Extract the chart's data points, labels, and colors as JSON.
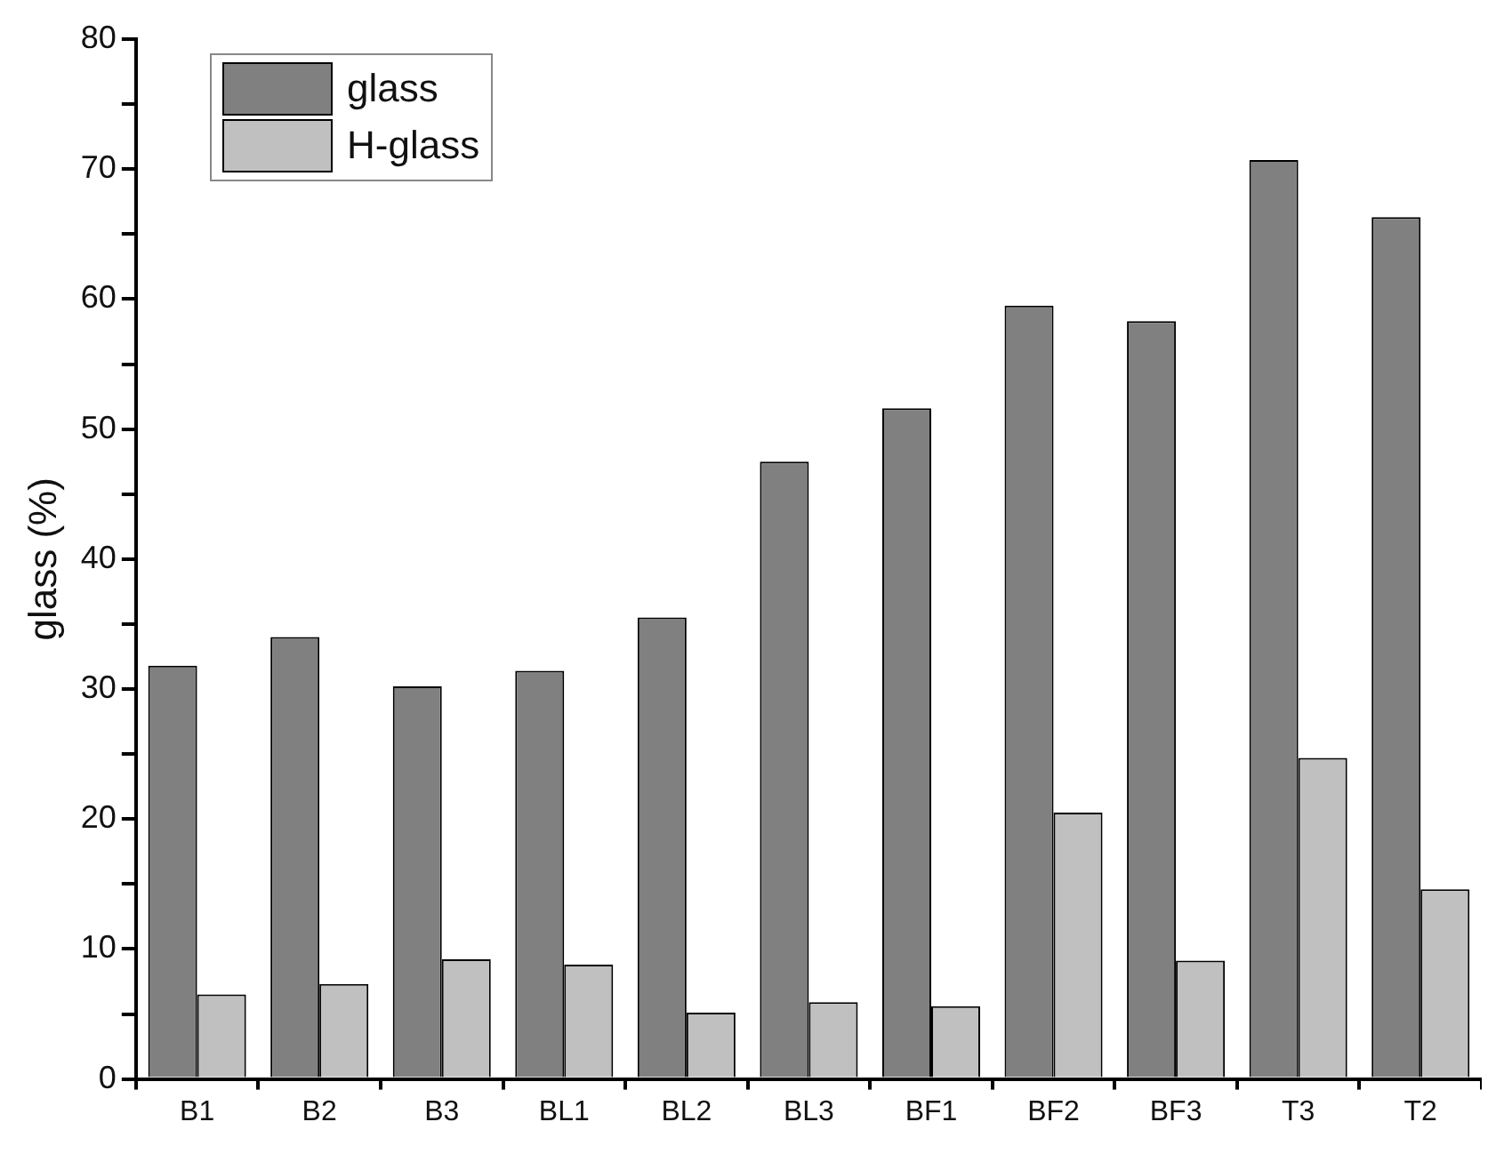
{
  "chart_data": {
    "type": "bar",
    "ylabel": "glass (%)",
    "categories": [
      "B1",
      "B2",
      "B3",
      "BL1",
      "BL2",
      "BL3",
      "BF1",
      "BF2",
      "BF3",
      "T3",
      "T2"
    ],
    "series": [
      {
        "name": "glass",
        "color": "#808080",
        "values": [
          31.8,
          34,
          30.2,
          31.4,
          35.5,
          47.5,
          51.6,
          59.5,
          58.3,
          70.7,
          66.3
        ]
      },
      {
        "name": "H-glass",
        "color": "#c0c0c0",
        "values": [
          6.5,
          7.3,
          9.2,
          8.8,
          5.1,
          5.9,
          5.6,
          20.5,
          9.1,
          24.7,
          14.6
        ]
      }
    ],
    "ylim": [
      0,
      80
    ],
    "yticks": [
      0,
      {
        "value": 5,
        "label": null
      },
      10,
      {
        "value": 15,
        "label": null
      },
      20,
      {
        "value": 25,
        "label": null
      },
      30,
      {
        "value": 35,
        "label": null
      },
      40,
      {
        "value": 45,
        "label": null
      },
      50,
      {
        "value": 55,
        "label": null
      },
      60,
      {
        "value": 65,
        "label": null
      },
      70,
      {
        "value": 75,
        "label": null
      },
      80
    ],
    "grid": false,
    "legend": "top left"
  }
}
